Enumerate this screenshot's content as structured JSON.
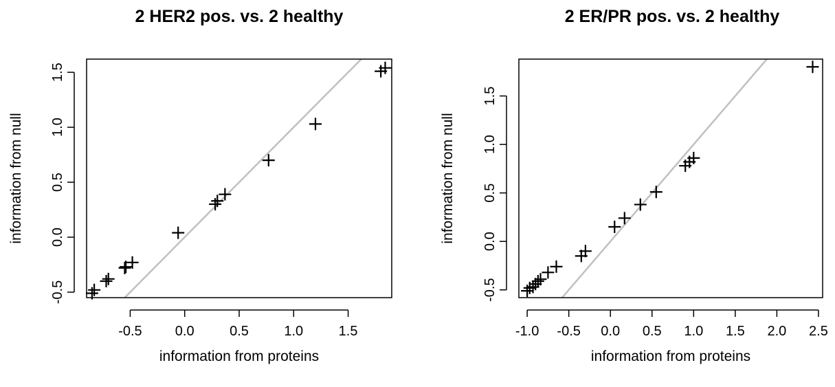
{
  "chart_data": [
    {
      "type": "scatter",
      "title": "2 HER2 pos. vs. 2 healthy",
      "xlabel": "information from proteins",
      "ylabel": "information from null",
      "xlim": [
        -0.9,
        1.9
      ],
      "ylim": [
        -0.55,
        1.62
      ],
      "xticks": [
        -0.5,
        0.0,
        0.5,
        1.0,
        1.5
      ],
      "xtick_labels": [
        "-0.5",
        "0.0",
        "0.5",
        "1.0",
        "1.5"
      ],
      "yticks": [
        -0.5,
        0.0,
        0.5,
        1.0,
        1.5
      ],
      "ytick_labels": [
        "-0.5",
        "0.0",
        "0.5",
        "1.0",
        "1.5"
      ],
      "grid": false,
      "marker": "+",
      "reference_line": {
        "slope": 1,
        "intercept": 0,
        "color": "#c0c0c0"
      },
      "points": [
        {
          "x": -0.85,
          "y": -0.51
        },
        {
          "x": -0.83,
          "y": -0.48
        },
        {
          "x": -0.72,
          "y": -0.4
        },
        {
          "x": -0.7,
          "y": -0.38
        },
        {
          "x": -0.55,
          "y": -0.28
        },
        {
          "x": -0.54,
          "y": -0.27
        },
        {
          "x": -0.48,
          "y": -0.23
        },
        {
          "x": -0.06,
          "y": 0.04
        },
        {
          "x": 0.28,
          "y": 0.3
        },
        {
          "x": 0.3,
          "y": 0.33
        },
        {
          "x": 0.37,
          "y": 0.39
        },
        {
          "x": 0.77,
          "y": 0.7
        },
        {
          "x": 1.2,
          "y": 1.03
        },
        {
          "x": 1.8,
          "y": 1.51
        },
        {
          "x": 1.84,
          "y": 1.54
        }
      ]
    },
    {
      "type": "scatter",
      "title": "2 ER/PR pos. vs. 2 healthy",
      "xlabel": "information from proteins",
      "ylabel": "information from null",
      "xlim": [
        -1.1,
        2.55
      ],
      "ylim": [
        -0.58,
        1.88
      ],
      "xticks": [
        -1.0,
        -0.5,
        0.0,
        0.5,
        1.0,
        1.5,
        2.0,
        2.5
      ],
      "xtick_labels": [
        "-1.0",
        "-0.5",
        "0.0",
        "0.5",
        "1.0",
        "1.5",
        "2.0",
        "2.5"
      ],
      "yticks": [
        -0.5,
        0.0,
        0.5,
        1.0,
        1.5
      ],
      "ytick_labels": [
        "-0.5",
        "0.0",
        "0.5",
        "1.0",
        "1.5"
      ],
      "grid": false,
      "marker": "+",
      "reference_line": {
        "slope": 1,
        "intercept": 0,
        "color": "#c0c0c0"
      },
      "points": [
        {
          "x": -1.0,
          "y": -0.51
        },
        {
          "x": -0.97,
          "y": -0.48
        },
        {
          "x": -0.93,
          "y": -0.47
        },
        {
          "x": -0.9,
          "y": -0.44
        },
        {
          "x": -0.87,
          "y": -0.41
        },
        {
          "x": -0.84,
          "y": -0.39
        },
        {
          "x": -0.75,
          "y": -0.32
        },
        {
          "x": -0.65,
          "y": -0.26
        },
        {
          "x": -0.35,
          "y": -0.15
        },
        {
          "x": -0.3,
          "y": -0.1
        },
        {
          "x": 0.05,
          "y": 0.15
        },
        {
          "x": 0.17,
          "y": 0.24
        },
        {
          "x": 0.36,
          "y": 0.38
        },
        {
          "x": 0.55,
          "y": 0.51
        },
        {
          "x": 0.9,
          "y": 0.78
        },
        {
          "x": 0.95,
          "y": 0.82
        },
        {
          "x": 1.0,
          "y": 0.86
        },
        {
          "x": 2.43,
          "y": 1.8
        }
      ]
    }
  ]
}
